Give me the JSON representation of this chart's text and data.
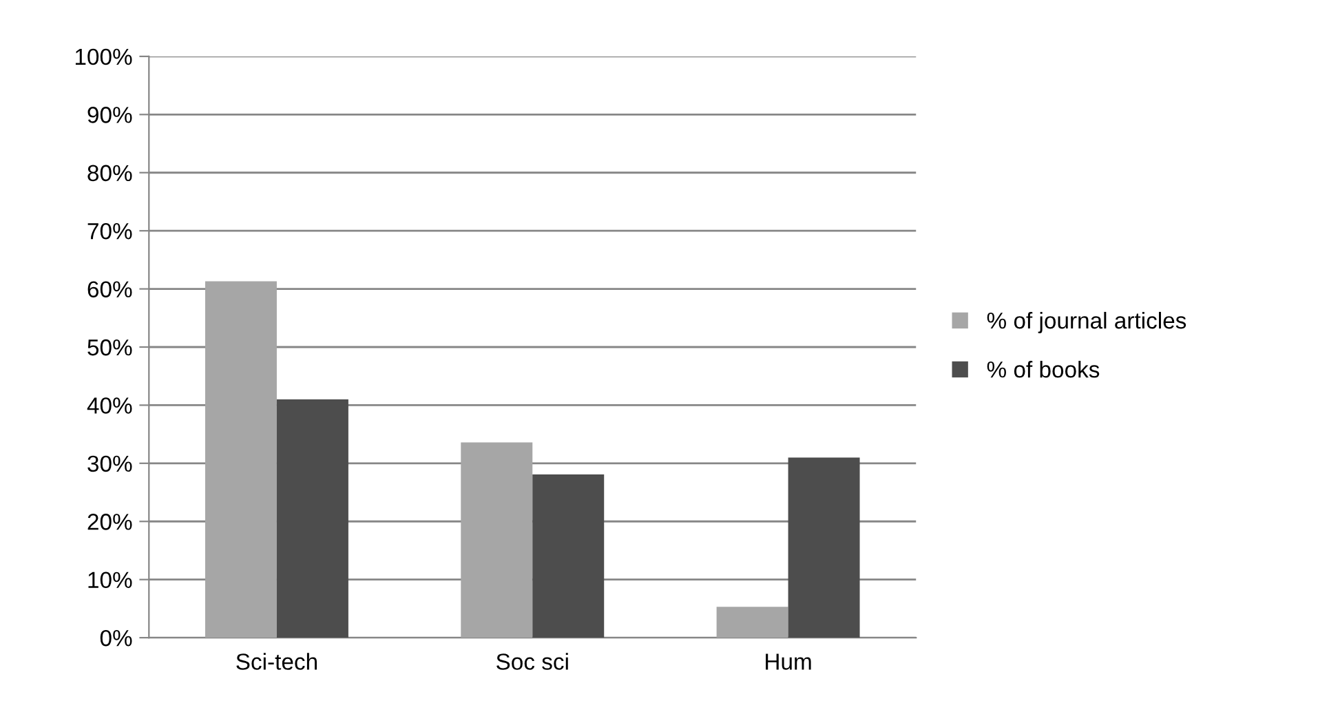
{
  "chart_data": {
    "type": "bar",
    "categories": [
      "Sci-tech",
      "Soc sci",
      "Hum"
    ],
    "series": [
      {
        "name": "% of journal articles",
        "color": "#a6a6a6",
        "values": [
          61.3,
          33.6,
          5.3
        ]
      },
      {
        "name": "% of books",
        "color": "#4d4d4d",
        "values": [
          41.0,
          28.1,
          31.0
        ]
      }
    ],
    "ylim": [
      0,
      100
    ],
    "yticks": [
      {
        "value": 0,
        "label": "0%"
      },
      {
        "value": 10,
        "label": "10%"
      },
      {
        "value": 20,
        "label": "20%"
      },
      {
        "value": 30,
        "label": "30%"
      },
      {
        "value": 40,
        "label": "40%"
      },
      {
        "value": 50,
        "label": "50%"
      },
      {
        "value": 60,
        "label": "60%"
      },
      {
        "value": 70,
        "label": "70%"
      },
      {
        "value": 80,
        "label": "80%"
      },
      {
        "value": 90,
        "label": "90%"
      },
      {
        "value": 100,
        "label": "100%"
      }
    ],
    "grid": "y",
    "legend": "right"
  }
}
